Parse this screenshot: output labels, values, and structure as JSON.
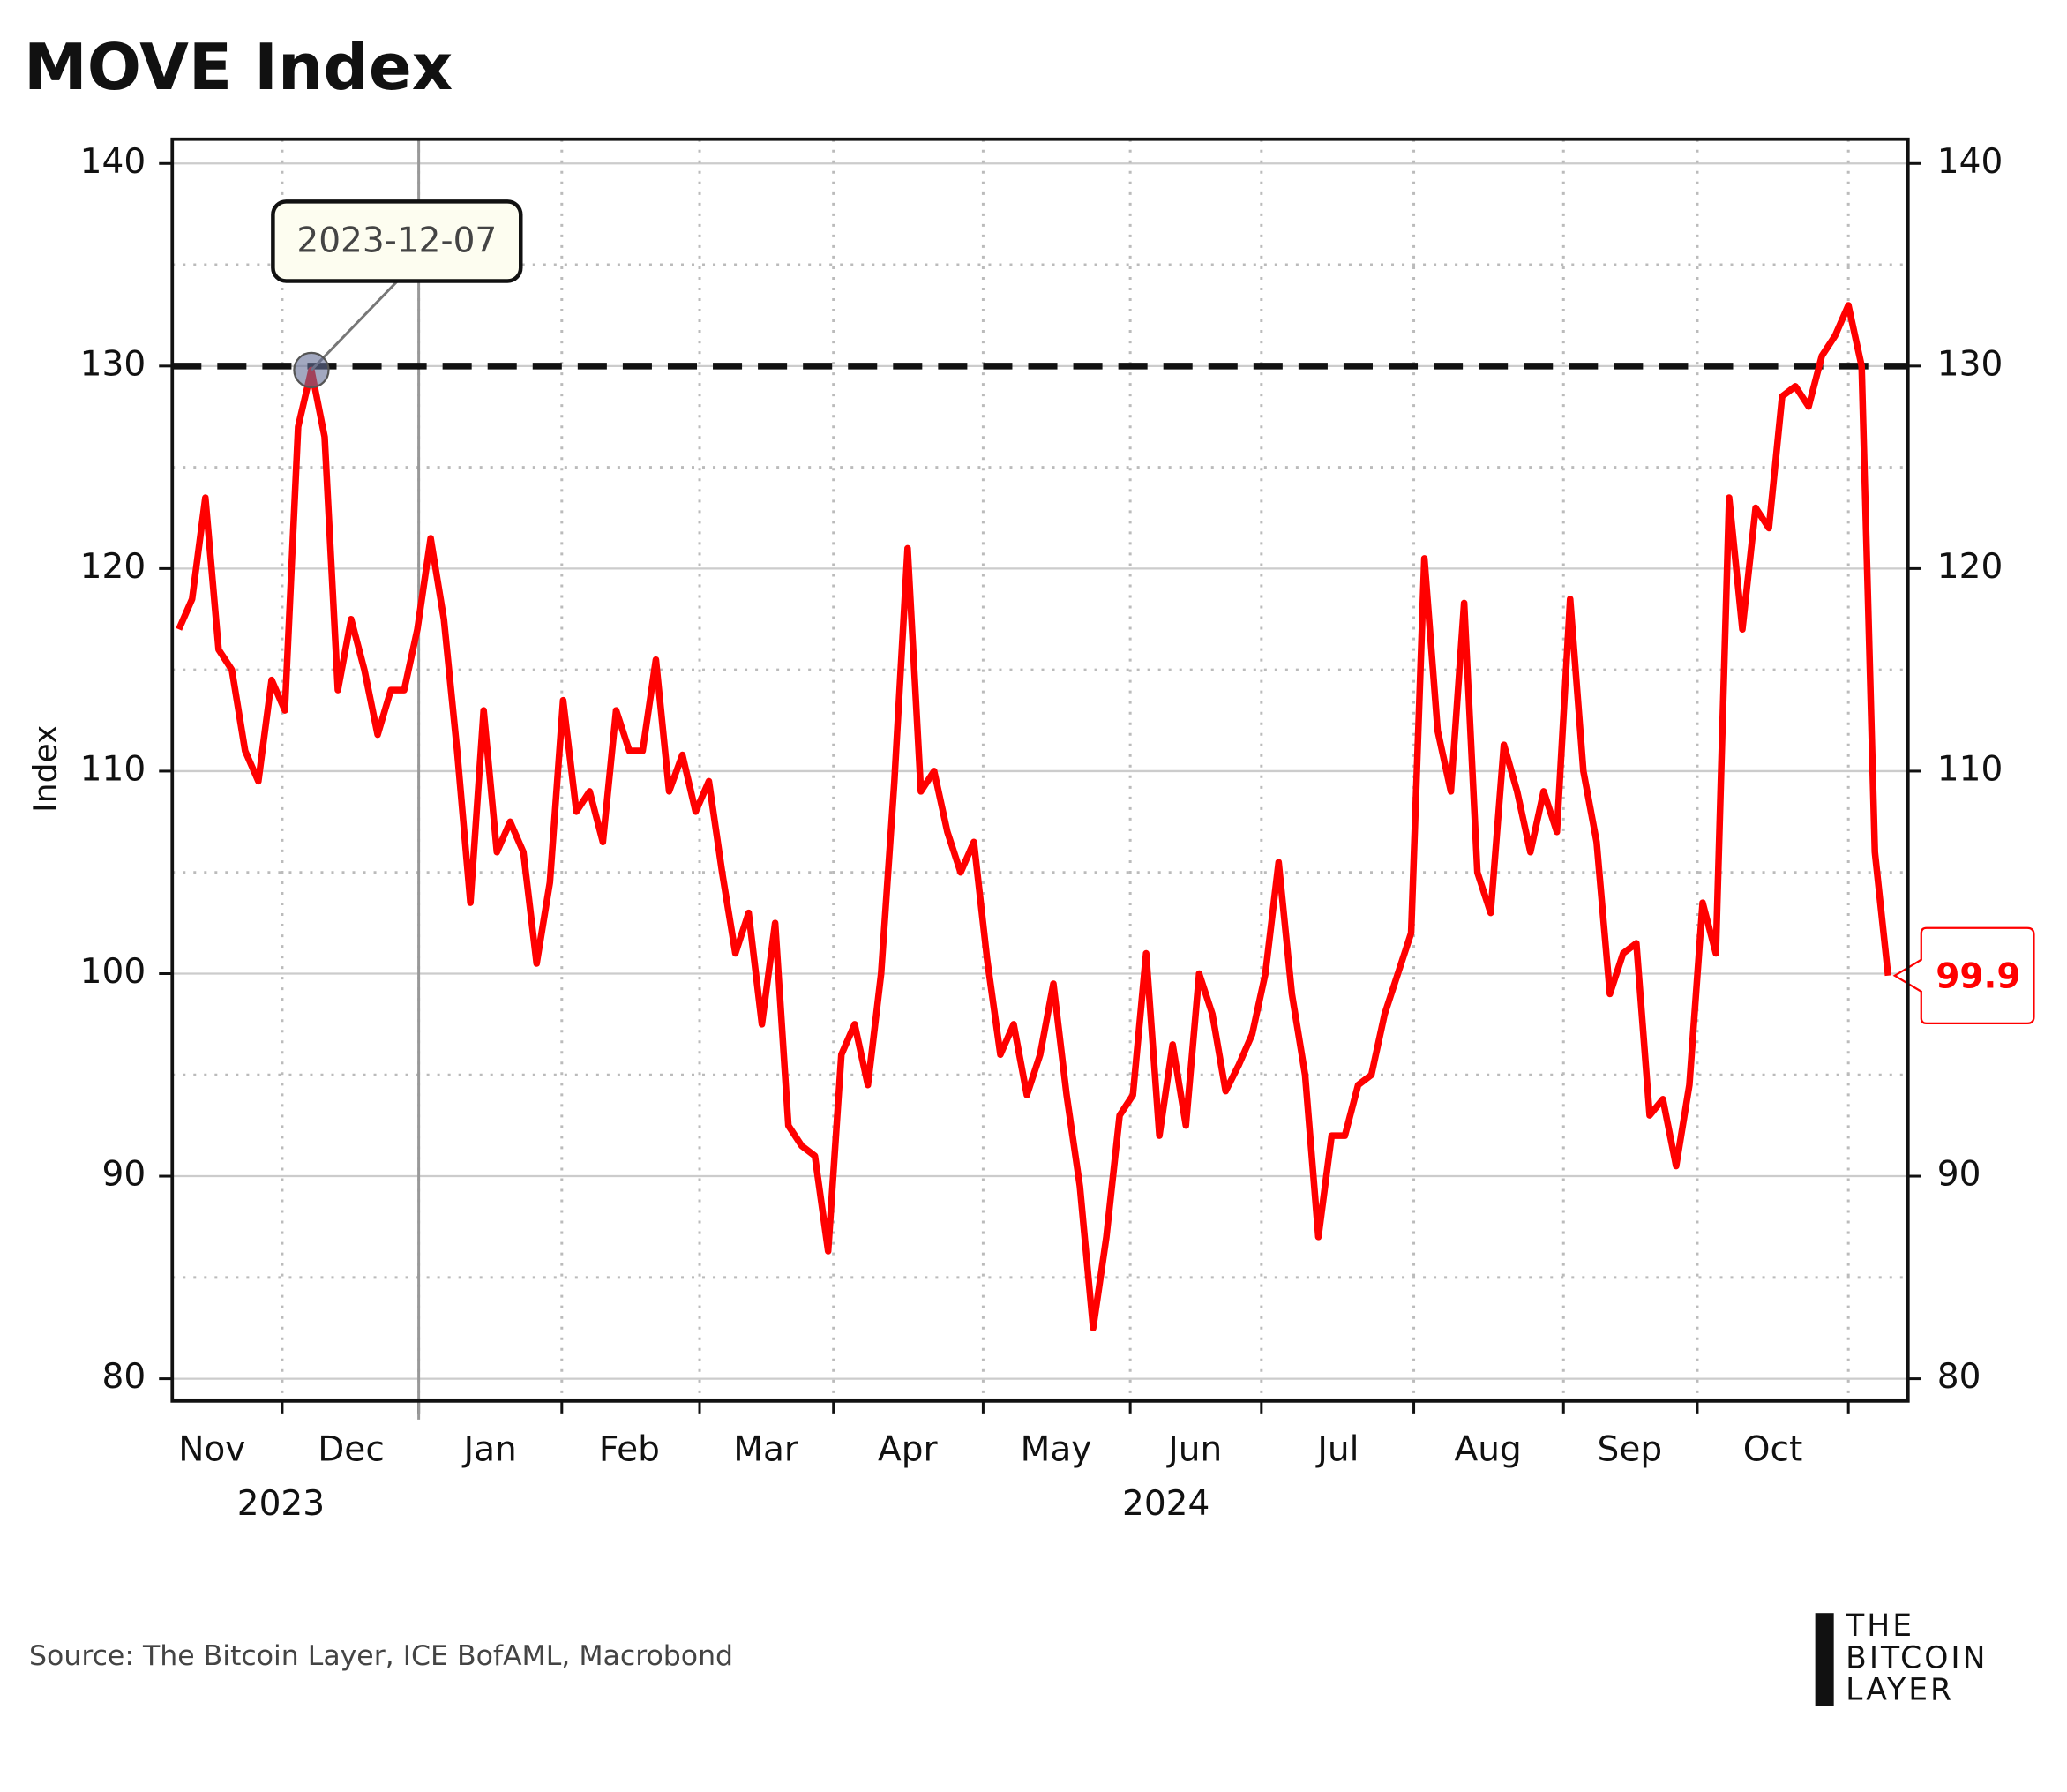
{
  "chart_data": {
    "type": "line",
    "title": "MOVE Index",
    "ylabel": "Index",
    "source": "Source: The Bitcoin Layer, ICE BofAML, Macrobond",
    "logo": [
      "THE",
      "BITCOIN",
      "LAYER"
    ],
    "annotation": {
      "label": "2023-12-07",
      "point": 10
    },
    "reference_line": 130,
    "series": [
      {
        "name": "MOVE Index",
        "color": "#ff0000",
        "values": [
          117.0,
          118.5,
          123.5,
          116,
          115,
          111,
          109.5,
          114.5,
          113,
          127,
          129.8,
          126.5,
          114,
          117.5,
          115,
          111.8,
          114,
          114,
          117,
          121.5,
          117.5,
          111,
          103.5,
          113,
          106,
          107.5,
          106,
          100.5,
          104.5,
          113.5,
          108,
          109,
          106.5,
          113,
          111,
          111,
          115.5,
          109,
          110.8,
          108,
          109.5,
          105,
          101,
          103,
          97.5,
          102.5,
          92.5,
          91.5,
          91,
          86.3,
          96,
          97.5,
          94.5,
          100,
          109.5,
          121,
          109,
          110,
          107,
          105,
          106.5,
          100.7,
          96,
          97.5,
          94,
          96,
          99.5,
          94,
          89.5,
          82.5,
          87,
          93,
          94,
          101,
          92,
          96.5,
          92.5,
          100,
          98,
          94.2,
          95.5,
          97,
          100,
          105.5,
          99,
          95,
          87,
          92,
          92,
          94.5,
          95,
          98,
          100,
          102,
          120.5,
          112,
          109,
          118.3,
          105,
          103,
          111.3,
          109,
          106,
          109,
          107,
          118.5,
          110,
          106.5,
          99,
          101,
          101.5,
          93,
          93.8,
          90.5,
          94.5,
          103.5,
          101,
          123.5,
          117,
          123,
          122,
          128.5,
          129,
          128,
          130.5,
          131.5,
          133,
          130,
          106,
          99.9
        ]
      }
    ],
    "xlim": [
      -0.5,
      130.5
    ],
    "xticks": [
      7.8,
      18.1,
      28.9,
      39.3,
      49.4,
      60.7,
      71.8,
      81.7,
      93.2,
      104.5,
      114.6,
      126
    ],
    "x_labels": [
      {
        "value": 2.5,
        "label": "Nov"
      },
      {
        "value": 13,
        "label": "Dec"
      },
      {
        "value": 23.5,
        "label": "Jan"
      },
      {
        "value": 34,
        "label": "Feb"
      },
      {
        "value": 44.3,
        "label": "Mar"
      },
      {
        "value": 55,
        "label": "Apr"
      },
      {
        "value": 66.2,
        "label": "May"
      },
      {
        "value": 76.7,
        "label": "Jun"
      },
      {
        "value": 87.5,
        "label": "Jul"
      },
      {
        "value": 98.8,
        "label": "Aug"
      },
      {
        "value": 109.5,
        "label": "Sep"
      },
      {
        "value": 120.3,
        "label": "Oct"
      }
    ],
    "year_labels": [
      {
        "value": 7.7,
        "label": "2023"
      },
      {
        "value": 74.5,
        "label": "2024"
      }
    ],
    "year_boundary": 18.1,
    "ylim": [
      78.9,
      141.2
    ],
    "yticks": [
      80,
      90,
      100,
      110,
      120,
      130,
      140
    ],
    "yminor": [
      85,
      95,
      105,
      115,
      125,
      135
    ],
    "grid": true
  }
}
